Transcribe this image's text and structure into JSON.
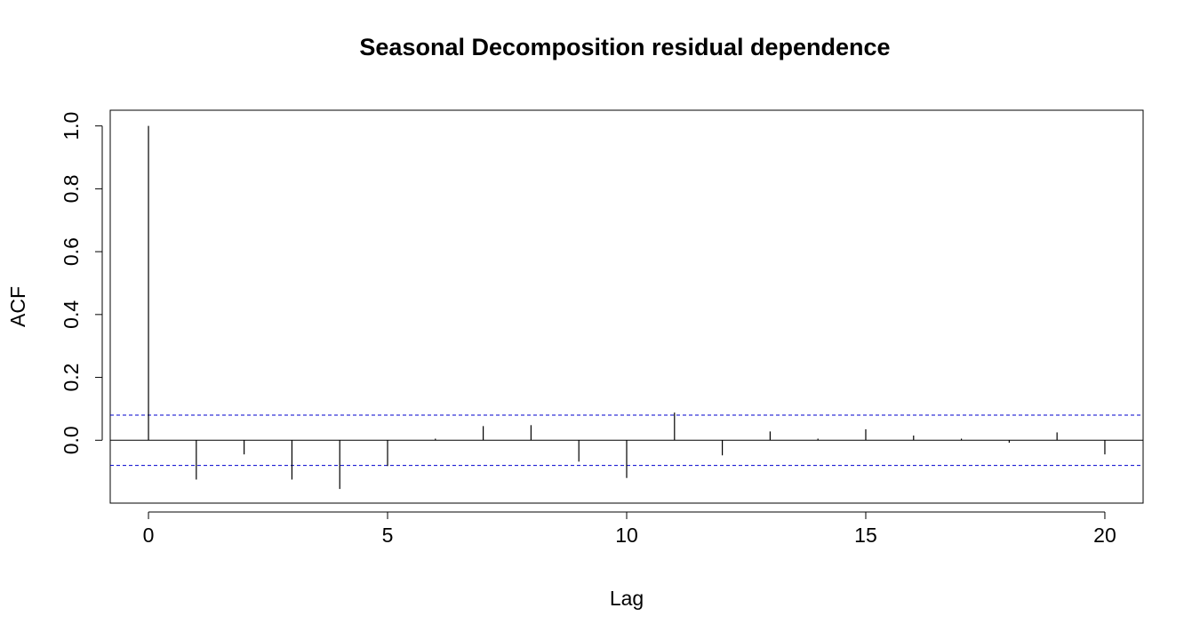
{
  "chart_data": {
    "type": "acf",
    "title": "Seasonal Decomposition residual dependence",
    "xlabel": "Lag",
    "ylabel": "ACF",
    "xlim": [
      -0.8,
      20.8
    ],
    "ylim": [
      -0.2,
      1.05
    ],
    "x_ticks": [
      0,
      5,
      10,
      15,
      20
    ],
    "x_tick_labels": [
      "0",
      "5",
      "10",
      "15",
      "20"
    ],
    "y_ticks": [
      0.0,
      0.2,
      0.4,
      0.6,
      0.8,
      1.0
    ],
    "y_tick_labels": [
      "0.0",
      "0.2",
      "0.4",
      "0.6",
      "0.8",
      "1.0"
    ],
    "lags": [
      0,
      1,
      2,
      3,
      4,
      5,
      6,
      7,
      8,
      9,
      10,
      11,
      12,
      13,
      14,
      15,
      16,
      17,
      18,
      19,
      20
    ],
    "acf": [
      1.0,
      -0.125,
      -0.045,
      -0.125,
      -0.155,
      -0.082,
      0.005,
      0.045,
      0.048,
      -0.068,
      -0.12,
      0.088,
      -0.048,
      0.028,
      0.005,
      0.035,
      0.015,
      0.005,
      -0.008,
      0.025,
      -0.045
    ],
    "confidence_bound": 0.08,
    "zero_line": true,
    "grid": false,
    "colors": {
      "bars": "#000000",
      "confidence": "#0000CD",
      "axes": "#000000"
    }
  }
}
